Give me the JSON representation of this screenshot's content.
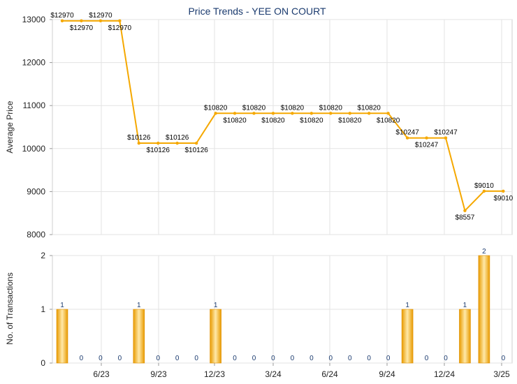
{
  "chart_data": [
    {
      "type": "line",
      "title": "Price Trends - YEE ON COURT",
      "ylabel": "Average Price",
      "ylim": [
        8000,
        13000
      ],
      "yticks": [
        "8000",
        "9000",
        "10000",
        "11000",
        "12000",
        "13000"
      ],
      "ytick_values": [
        8000,
        9000,
        10000,
        11000,
        12000,
        13000
      ],
      "grid": true,
      "color": "#f5a800",
      "series": [
        {
          "values": [
            12970,
            12970,
            12970,
            12970,
            10126,
            10126,
            10126,
            10126,
            10820,
            10820,
            10820,
            10820,
            10820,
            10820,
            10820,
            10820,
            10820,
            10820,
            10247,
            10247,
            10247,
            8557,
            9010,
            9010
          ],
          "labels": [
            "$12970",
            "$12970",
            "$12970",
            "$12970",
            "$10126",
            "$10126",
            "$10126",
            "$10126",
            "$10820",
            "$10820",
            "$10820",
            "$10820",
            "$10820",
            "$10820",
            "$10820",
            "$10820",
            "$10820",
            "$10820",
            "$10247",
            "$10247",
            "$10247",
            "$8557",
            "$9010",
            "$9010"
          ]
        }
      ]
    },
    {
      "type": "bar",
      "ylabel": "No. of Transactions",
      "ylim": [
        0,
        2
      ],
      "yticks": [
        "0",
        "1",
        "2"
      ],
      "ytick_values": [
        0,
        1,
        2
      ],
      "x_tick_labels": [
        "6/23",
        "9/23",
        "12/23",
        "3/24",
        "6/24",
        "9/24",
        "12/24",
        "3/25"
      ],
      "grid": true,
      "color": "#f5a800",
      "series": [
        {
          "values": [
            1,
            0,
            0,
            0,
            1,
            0,
            0,
            0,
            1,
            0,
            0,
            0,
            0,
            0,
            0,
            0,
            0,
            0,
            1,
            0,
            0,
            1,
            2,
            0
          ],
          "labels": [
            "1",
            "0",
            "0",
            "0",
            "1",
            "0",
            "0",
            "0",
            "1",
            "0",
            "0",
            "0",
            "0",
            "0",
            "0",
            "0",
            "0",
            "0",
            "1",
            "0",
            "0",
            "1",
            "2",
            "0"
          ]
        }
      ]
    }
  ]
}
